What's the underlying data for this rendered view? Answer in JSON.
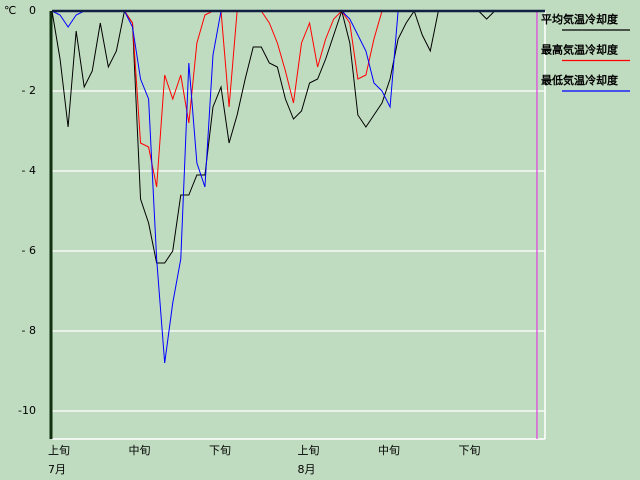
{
  "chart_data": {
    "type": "line",
    "unit": "℃",
    "ylim": [
      -10.7,
      0
    ],
    "yticks": [
      0,
      {
        "value": -2,
        "label": "- 2"
      },
      {
        "value": -4,
        "label": "- 4"
      },
      {
        "value": -6,
        "label": "- 6"
      },
      {
        "value": -8,
        "label": "- 8"
      },
      -10
    ],
    "xlim": [
      0,
      61.25
    ],
    "xticks": [
      {
        "value": 0,
        "label": "上旬"
      },
      {
        "value": 10,
        "label": "中旬"
      },
      {
        "value": 20,
        "label": "下旬"
      },
      {
        "value": 31,
        "label": "上旬"
      },
      {
        "value": 41,
        "label": "中旬"
      },
      {
        "value": 51,
        "label": "下旬"
      }
    ],
    "month_ticks": [
      {
        "value": 0,
        "label": "7月"
      },
      {
        "value": 31,
        "label": "8月"
      }
    ],
    "marker_line": {
      "x": 60.25,
      "color": "#e040e0"
    },
    "grid": true,
    "legend": "right",
    "series": [
      {
        "name": "平均気温冷却度",
        "color": "#000000",
        "values": [
          0,
          -1.2,
          -2.9,
          -0.5,
          -1.9,
          -1.5,
          -0.3,
          -1.4,
          -1.0,
          0,
          -0.3,
          -4.7,
          -5.3,
          -6.3,
          -6.3,
          -6.0,
          -4.6,
          -4.6,
          -4.1,
          -4.1,
          -2.4,
          -1.9,
          -3.3,
          -2.6,
          -1.7,
          -0.9,
          -0.9,
          -1.3,
          -1.4,
          -2.2,
          -2.7,
          -2.5,
          -1.8,
          -1.7,
          -1.2,
          -0.6,
          0,
          -0.8,
          -2.6,
          -2.9,
          -2.6,
          -2.3,
          -1.7,
          -0.7,
          -0.3,
          0,
          -0.6,
          -1.0,
          0,
          0,
          0,
          0,
          0,
          0,
          -0.2,
          0,
          0,
          0,
          0,
          0,
          0,
          0
        ]
      },
      {
        "name": "最高気温冷却度",
        "color": "#ff0000",
        "values": [
          0,
          0,
          0,
          0,
          0,
          0,
          0,
          0,
          0,
          0,
          -0.3,
          -3.3,
          -3.4,
          -4.4,
          -1.6,
          -2.2,
          -1.6,
          -2.8,
          -0.8,
          -0.1,
          0,
          0,
          -2.4,
          0,
          0,
          0,
          0,
          -0.3,
          -0.8,
          -1.5,
          -2.3,
          -0.8,
          -0.3,
          -1.4,
          -0.7,
          -0.2,
          0,
          -0.3,
          -1.7,
          -1.6,
          -0.7,
          0,
          0,
          0,
          0,
          0,
          0,
          0,
          0,
          0,
          0,
          0,
          0,
          0,
          0,
          0,
          0,
          0,
          0,
          0,
          0,
          0
        ]
      },
      {
        "name": "最低気温冷却度",
        "color": "#0000ff",
        "values": [
          0,
          -0.1,
          -0.4,
          -0.1,
          0,
          0,
          0,
          0,
          0,
          0,
          -0.4,
          -1.7,
          -2.2,
          -6.2,
          -8.8,
          -7.3,
          -6.2,
          -1.3,
          -3.8,
          -4.4,
          -1.1,
          0,
          0,
          0,
          0,
          0,
          0,
          0,
          0,
          0,
          0,
          0,
          0,
          0,
          0,
          0,
          0,
          -0.2,
          -0.6,
          -1.0,
          -1.8,
          -2.0,
          -2.4,
          0,
          0,
          0,
          0,
          0,
          0,
          0,
          0,
          0,
          0,
          0,
          0,
          0,
          0,
          0,
          0,
          0,
          0,
          0
        ]
      }
    ]
  }
}
